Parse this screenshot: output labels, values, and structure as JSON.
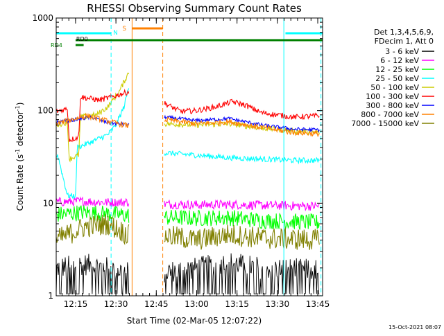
{
  "chart_data": {
    "type": "line",
    "title": "RHESSI Observing Summary Count Rates",
    "xlabel": "Start Time (02-Mar-05 12:07:22)",
    "ylabel_prefix": "Count Rate (s",
    "ylabel_sup1": "-1",
    "ylabel_mid": " detector",
    "ylabel_sup2": "-1",
    "ylabel_suffix": ")",
    "y_scale": "log",
    "ylim": [
      1,
      1000
    ],
    "xlim_minutes": [
      12.13,
      13.78
    ],
    "x_tick_labels": [
      "12:15",
      "12:30",
      "12:45",
      "13:00",
      "13:15",
      "13:30",
      "13:45"
    ],
    "x_tick_values_h": [
      12.25,
      12.5,
      12.75,
      13.0,
      13.25,
      13.5,
      13.75
    ],
    "y_tick_labels": [
      "1",
      "10",
      "100",
      "1000"
    ],
    "y_tick_values": [
      1,
      10,
      100,
      1000
    ],
    "legend_header": [
      "Det 1,3,4,5,6,9,",
      "FDecim 1, Att 0"
    ],
    "legend_placement": "right",
    "gap_h": [
      12.595,
      12.795
    ],
    "series": [
      {
        "name": "3 - 6 keV",
        "color": "#000000",
        "pre": [
          [
            12.13,
            2.0
          ],
          [
            12.3,
            2.2
          ],
          [
            12.45,
            2.0
          ],
          [
            12.58,
            1.8
          ]
        ],
        "post": [
          [
            12.8,
            1.8
          ],
          [
            13.0,
            2.0
          ],
          [
            13.2,
            2.3
          ],
          [
            13.4,
            2.0
          ],
          [
            13.76,
            1.9
          ]
        ]
      },
      {
        "name": "6 - 12 keV",
        "color": "#ff00ff",
        "pre": [
          [
            12.13,
            10.3
          ],
          [
            12.3,
            10.5
          ],
          [
            12.45,
            10.2
          ],
          [
            12.58,
            10.3
          ]
        ],
        "post": [
          [
            12.8,
            9.8
          ],
          [
            13.0,
            9.6
          ],
          [
            13.2,
            9.7
          ],
          [
            13.4,
            9.5
          ],
          [
            13.76,
            9.3
          ]
        ]
      },
      {
        "name": "12 - 25 keV",
        "color": "#00ff00",
        "pre": [
          [
            12.13,
            7.5
          ],
          [
            12.3,
            8.0
          ],
          [
            12.45,
            7.7
          ],
          [
            12.58,
            7.4
          ]
        ],
        "post": [
          [
            12.8,
            7.0
          ],
          [
            13.0,
            6.9
          ],
          [
            13.2,
            7.0
          ],
          [
            13.4,
            6.5
          ],
          [
            13.76,
            6.2
          ]
        ]
      },
      {
        "name": "25 - 50 keV",
        "color": "#00ffff",
        "pre": [
          [
            12.13,
            32
          ],
          [
            12.14,
            33
          ],
          [
            12.2,
            12
          ],
          [
            12.25,
            12
          ],
          [
            12.26,
            40
          ],
          [
            12.35,
            46
          ],
          [
            12.45,
            55
          ],
          [
            12.5,
            70
          ],
          [
            12.55,
            110
          ],
          [
            12.58,
            180
          ]
        ],
        "post": [
          [
            12.8,
            35
          ],
          [
            13.0,
            33
          ],
          [
            13.2,
            31
          ],
          [
            13.4,
            30
          ],
          [
            13.6,
            29
          ],
          [
            13.76,
            29
          ]
        ]
      },
      {
        "name": "50 - 100 keV",
        "color": "#cccc00",
        "pre": [
          [
            12.13,
            70
          ],
          [
            12.2,
            75
          ],
          [
            12.21,
            30
          ],
          [
            12.27,
            33
          ],
          [
            12.28,
            85
          ],
          [
            12.38,
            90
          ],
          [
            12.45,
            110
          ],
          [
            12.52,
            160
          ],
          [
            12.58,
            260
          ]
        ],
        "post": [
          [
            12.8,
            72
          ],
          [
            13.0,
            70
          ],
          [
            13.2,
            72
          ],
          [
            13.4,
            65
          ],
          [
            13.6,
            60
          ],
          [
            13.76,
            58
          ]
        ]
      },
      {
        "name": "100 - 300 keV",
        "color": "#ff0000",
        "pre": [
          [
            12.13,
            98
          ],
          [
            12.2,
            105
          ],
          [
            12.21,
            48
          ],
          [
            12.27,
            52
          ],
          [
            12.28,
            140
          ],
          [
            12.4,
            130
          ],
          [
            12.5,
            145
          ],
          [
            12.58,
            160
          ]
        ],
        "post": [
          [
            12.8,
            120
          ],
          [
            12.9,
            98
          ],
          [
            13.0,
            100
          ],
          [
            13.12,
            110
          ],
          [
            13.22,
            125
          ],
          [
            13.3,
            115
          ],
          [
            13.4,
            95
          ],
          [
            13.6,
            85
          ],
          [
            13.76,
            88
          ]
        ]
      },
      {
        "name": "300 - 800 keV",
        "color": "#0000ff",
        "pre": [
          [
            12.13,
            75
          ],
          [
            12.25,
            80
          ],
          [
            12.35,
            85
          ],
          [
            12.45,
            74
          ],
          [
            12.58,
            70
          ]
        ],
        "post": [
          [
            12.8,
            85
          ],
          [
            13.0,
            78
          ],
          [
            13.2,
            82
          ],
          [
            13.4,
            70
          ],
          [
            13.6,
            63
          ],
          [
            13.76,
            62
          ]
        ]
      },
      {
        "name": "800 - 7000 keV",
        "color": "#ff8000",
        "pre": [
          [
            12.13,
            72
          ],
          [
            12.25,
            82
          ],
          [
            12.32,
            88
          ],
          [
            12.45,
            77
          ],
          [
            12.58,
            68
          ]
        ],
        "post": [
          [
            12.8,
            80
          ],
          [
            13.0,
            72
          ],
          [
            13.2,
            76
          ],
          [
            13.4,
            66
          ],
          [
            13.6,
            58
          ],
          [
            13.76,
            56
          ]
        ]
      },
      {
        "name": "7000 - 15000 keV",
        "color": "#808000",
        "pre": [
          [
            12.13,
            4.0
          ],
          [
            12.3,
            5.5
          ],
          [
            12.45,
            6.0
          ],
          [
            12.58,
            4.5
          ]
        ],
        "post": [
          [
            12.8,
            4.5
          ],
          [
            13.0,
            4.0
          ],
          [
            13.2,
            4.6
          ],
          [
            13.4,
            4.2
          ],
          [
            13.76,
            4.0
          ]
        ]
      }
    ],
    "markers": {
      "N_label": "N",
      "S_label": "S",
      "RD0_label": "RD0",
      "RD4_label": "RD4",
      "night_line_color": "#00ffff",
      "saa_color": "#ff8000",
      "decim_color": "#008000",
      "n_bars_h": [
        [
          12.13,
          12.47
        ],
        [
          13.55,
          13.78
        ]
      ],
      "n_dashed_h": [
        12.47,
        13.77
      ],
      "n_solid_h": [
        13.54
      ],
      "s_bar_h": [
        12.6,
        12.79
      ],
      "s_solid_h": [
        12.6
      ],
      "s_dashed_h": [
        12.79
      ],
      "rd0_bar_h": [
        12.25,
        13.78
      ],
      "rd4_bar_h": [
        12.25,
        12.3
      ]
    },
    "grid": false
  },
  "footer": {
    "timestamp": "15-Oct-2021 08:07"
  }
}
